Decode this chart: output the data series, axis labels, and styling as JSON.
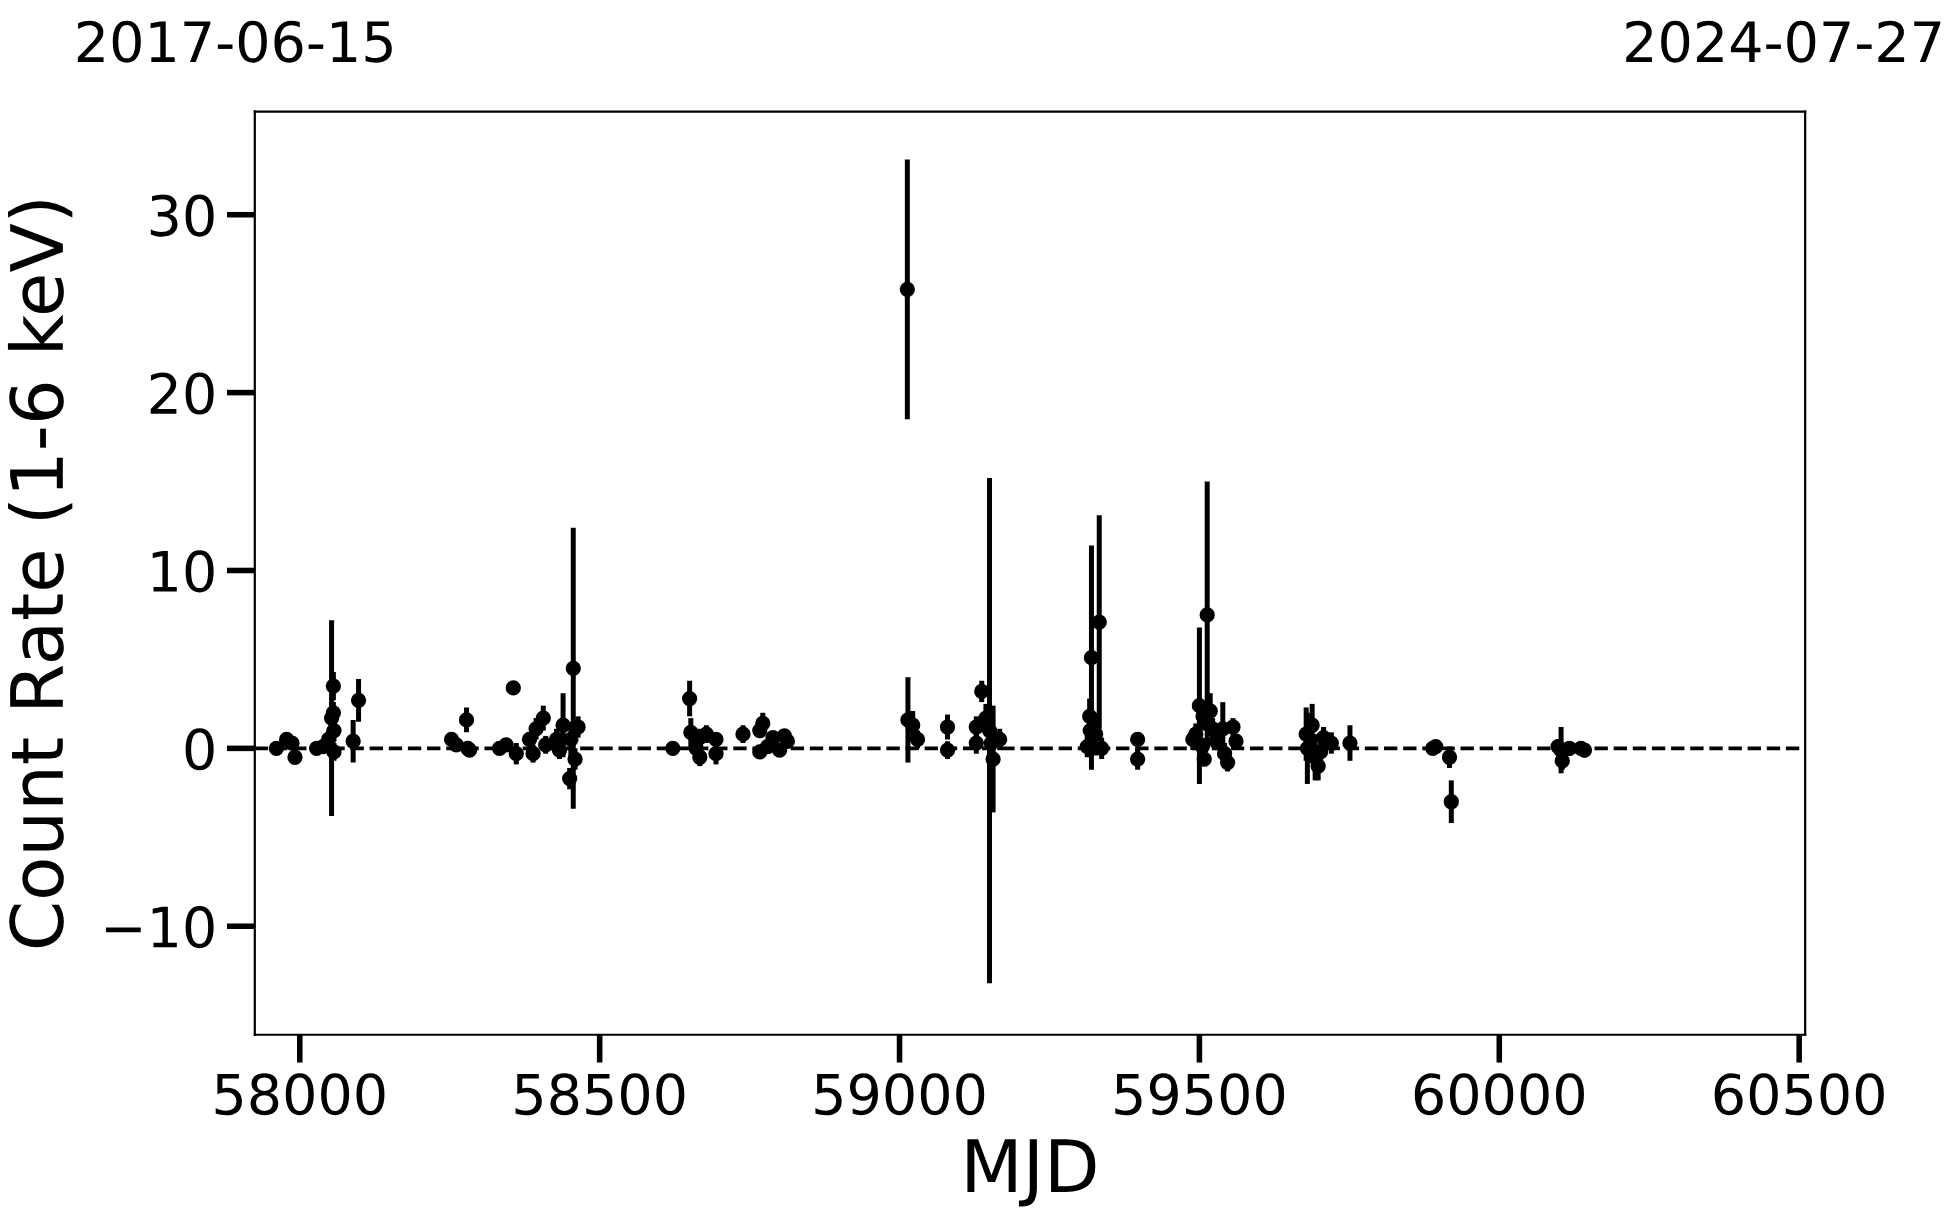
{
  "chart_data": {
    "type": "scatter",
    "xlabel": "MJD",
    "ylabel": "Count Rate (1-6 keV)",
    "annotations": [
      "2017-06-15",
      "2024-07-27"
    ],
    "xlim": [
      57925,
      60510
    ],
    "xticks": [
      58000,
      58500,
      59000,
      59500,
      60000,
      60500
    ],
    "ylim": [
      -16.1,
      35.8
    ],
    "yticks": [
      -10,
      0,
      10,
      20,
      30
    ],
    "marker": "circle",
    "grid": false,
    "legend": false,
    "ref_lines": [
      {
        "axis": "y",
        "value": 0,
        "color": "#000000",
        "line_style": "dashed"
      }
    ],
    "series": [
      {
        "color": "#000000",
        "x": [
          57961,
          57978,
          57987,
          57992,
          58028,
          58039,
          58048,
          58053,
          58056,
          58056,
          58057,
          58057,
          58089,
          58098,
          58253,
          58261,
          58278,
          58283,
          58280,
          58333,
          58344,
          58356,
          58361,
          58383,
          58389,
          58394,
          58406,
          58410,
          58428,
          58433,
          58439,
          58450,
          58452,
          58456,
          58459,
          58464,
          58622,
          58650,
          58652,
          58661,
          58667,
          58667,
          58678,
          58694,
          58694,
          58739,
          58772,
          58767,
          58767,
          58780,
          58789,
          58800,
          58808,
          58813,
          59013,
          59014,
          59022,
          59030,
          59080,
          59080,
          59128,
          59128,
          59137,
          59144,
          59150,
          59156,
          59167,
          59153,
          59313,
          59317,
          59320,
          59333,
          59327,
          59337,
          59318,
          59397,
          59397,
          59489,
          59494,
          59500,
          59506,
          59505,
          59513,
          59508,
          59518,
          59522,
          59528,
          59539,
          59542,
          59547,
          59556,
          59561,
          59678,
          59680,
          59688,
          59693,
          59698,
          59702,
          59707,
          59720,
          59751,
          59889,
          59894,
          59917,
          59920,
          60098,
          60103,
          60105,
          60117,
          60136,
          60142
        ],
        "values": [
          0.0,
          0.5,
          0.3,
          -0.5,
          0.0,
          0.1,
          0.5,
          1.7,
          3.5,
          2.0,
          1.0,
          -0.2,
          0.4,
          2.7,
          0.5,
          0.2,
          1.6,
          -0.1,
          0.0,
          0.0,
          0.2,
          3.4,
          -0.3,
          0.5,
          -0.3,
          1.1,
          1.7,
          0.2,
          0.5,
          -0.1,
          1.3,
          -1.7,
          0.5,
          4.5,
          -0.6,
          1.2,
          0.0,
          2.8,
          0.9,
          0.0,
          0.6,
          -0.5,
          0.8,
          0.5,
          -0.3,
          0.8,
          1.4,
          1.0,
          -0.2,
          0.1,
          0.6,
          -0.1,
          0.7,
          0.4,
          25.8,
          1.6,
          1.3,
          0.5,
          1.2,
          -0.1,
          1.2,
          0.3,
          3.2,
          1.7,
          1.0,
          -0.6,
          0.5,
          0.3,
          0.1,
          1.8,
          5.1,
          7.1,
          0.8,
          0.0,
          1.0,
          0.5,
          -0.6,
          0.5,
          0.8,
          2.4,
          1.8,
          0.1,
          7.5,
          -0.6,
          2.1,
          1.1,
          0.4,
          1.1,
          -0.3,
          -0.8,
          1.2,
          0.4,
          0.8,
          0.0,
          1.3,
          -0.5,
          -1.0,
          -0.2,
          0.6,
          0.3,
          0.3,
          0.0,
          0.1,
          -0.5,
          -3.0,
          0.1,
          -0.1,
          -0.7,
          0.0,
          0.0,
          -0.1
        ],
        "errors": [
          0.3,
          0.3,
          0.3,
          0.3,
          0.3,
          0.3,
          0.5,
          5.5,
          0.8,
          0.6,
          0.6,
          0.5,
          1.2,
          1.2,
          0.3,
          0.3,
          0.7,
          0.3,
          0.3,
          0.2,
          0.3,
          0.3,
          0.6,
          0.4,
          0.5,
          0.6,
          0.7,
          0.5,
          0.6,
          0.5,
          1.8,
          0.6,
          1.0,
          7.9,
          0.6,
          0.6,
          0.2,
          1.0,
          0.8,
          0.4,
          0.5,
          0.5,
          0.5,
          0.3,
          0.6,
          0.5,
          0.6,
          0.4,
          0.4,
          0.3,
          0.3,
          0.3,
          0.3,
          0.3,
          7.3,
          2.4,
          0.8,
          0.5,
          0.7,
          0.5,
          0.6,
          0.6,
          0.6,
          0.8,
          14.2,
          3.0,
          0.6,
          0.8,
          0.6,
          1.0,
          6.3,
          6.0,
          1.2,
          0.6,
          1.2,
          0.3,
          0.6,
          0.6,
          0.6,
          4.4,
          0.8,
          0.5,
          7.5,
          0.4,
          1.0,
          0.6,
          0.5,
          1.5,
          0.6,
          0.5,
          0.5,
          0.4,
          1.5,
          2.0,
          1.2,
          1.3,
          0.8,
          0.6,
          0.6,
          0.6,
          1.0,
          0.3,
          0.3,
          0.6,
          1.2,
          0.4,
          1.3,
          0.5,
          0.4,
          0.3,
          0.4
        ]
      }
    ]
  }
}
